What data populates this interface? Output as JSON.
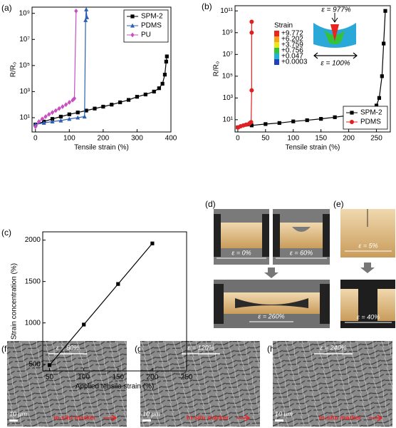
{
  "chart_data": [
    {
      "type": "line",
      "panel_label": "(a)",
      "log": true,
      "legend": "upper right",
      "xlabel": "Tensile strain (%)",
      "ylabel": "R/R₀",
      "xlim": [
        -10,
        400
      ],
      "xticks": [
        0,
        100,
        200,
        300,
        400
      ],
      "ylim": [
        0.8,
        3000000000
      ],
      "yticks": [
        {
          "value": 10,
          "label": "10¹"
        },
        {
          "value": 1000,
          "label": "10³"
        },
        {
          "value": 100000,
          "label": "10⁵"
        },
        {
          "value": 10000000,
          "label": "10⁷"
        },
        {
          "value": 1000000000,
          "label": "10⁹"
        }
      ],
      "series": [
        {
          "name": "SPM-2",
          "color": "#000000",
          "marker": "square",
          "x": [
            0,
            25,
            50,
            75,
            100,
            125,
            150,
            175,
            200,
            225,
            250,
            275,
            300,
            325,
            350,
            365,
            375,
            382,
            386,
            388
          ],
          "values": [
            3,
            5,
            8,
            12,
            18,
            25,
            35,
            50,
            70,
            100,
            150,
            230,
            400,
            600,
            1000,
            1800,
            4000,
            20000,
            200000,
            500000
          ]
        },
        {
          "name": "PDMS",
          "color": "#2d5fb5",
          "marker": "triangle",
          "x": [
            0,
            25,
            50,
            75,
            100,
            125,
            145,
            148,
            150,
            152
          ],
          "values": [
            3,
            4,
            5,
            6,
            8,
            10,
            12,
            300000000,
            2000000000,
            500000000
          ]
        },
        {
          "name": "PU",
          "color": "#c94fc0",
          "marker": "diamond",
          "x": [
            0,
            10,
            20,
            30,
            40,
            50,
            60,
            70,
            80,
            90,
            100,
            110,
            115,
            120
          ],
          "values": [
            2,
            5,
            8,
            12,
            18,
            25,
            35,
            50,
            70,
            100,
            150,
            220,
            300,
            1500000000
          ]
        }
      ]
    },
    {
      "type": "line",
      "panel_label": "(b)",
      "log": true,
      "legend": "lower right",
      "xlabel": "Tensile strain (%)",
      "ylabel": "R/R₀",
      "xlim": [
        -5,
        275
      ],
      "xticks": [
        0,
        50,
        100,
        150,
        200,
        250
      ],
      "ylim": [
        0.75,
        300000000000
      ],
      "yticks": [
        {
          "value": 10,
          "label": "10¹"
        },
        {
          "value": 1000,
          "label": "10³"
        },
        {
          "value": 100000,
          "label": "10⁵"
        },
        {
          "value": 10000000,
          "label": "10⁷"
        },
        {
          "value": 1000000000,
          "label": "10⁹"
        },
        {
          "value": 100000000000,
          "label": "10¹¹"
        }
      ],
      "series": [
        {
          "name": "SPM-2",
          "color": "#000000",
          "marker": "square",
          "x": [
            0,
            25,
            50,
            75,
            100,
            125,
            150,
            175,
            200,
            225,
            240,
            250,
            255,
            260,
            263,
            266
          ],
          "values": [
            2,
            3,
            4,
            5,
            7,
            9,
            12,
            17,
            25,
            45,
            80,
            200,
            1000,
            100000,
            100000000,
            100000000000
          ]
        },
        {
          "name": "PDMS",
          "color": "#e02020",
          "marker": "circle",
          "x": [
            0,
            5,
            10,
            15,
            20,
            22,
            24,
            25,
            25,
            25
          ],
          "values": [
            2,
            2.5,
            3,
            3.5,
            4,
            5,
            6,
            5000,
            1000000000,
            10000000000
          ]
        }
      ],
      "inset": {
        "title": "Strain",
        "levels": [
          "+9.772",
          "+6.202",
          "+3.759",
          "+0.756",
          "+0.047",
          "+0.0003"
        ],
        "colors": [
          "#e8251f",
          "#f7a21b",
          "#e9e61c",
          "#35c23a",
          "#1fb3d8",
          "#2142b8"
        ],
        "annotations": [
          "ε = 977%",
          "ε = 100%"
        ]
      }
    },
    {
      "type": "line",
      "panel_label": "(c)",
      "log": false,
      "xlabel": "Applied tensile strain (%)",
      "ylabel": "Strain concentration (%)",
      "xlim": [
        40,
        250
      ],
      "xticks": [
        50,
        100,
        150,
        200,
        250
      ],
      "ylim": [
        420,
        2100
      ],
      "yticks": [
        500,
        1000,
        1500,
        2000
      ],
      "color": "#000000",
      "marker": "square",
      "x": [
        50,
        100,
        150,
        200
      ],
      "values": [
        490,
        980,
        1470,
        1960
      ]
    }
  ],
  "photos": {
    "d": {
      "panel_label": "(d)",
      "labels": [
        "ε = 0%",
        "ε = 60%",
        "ε = 260%"
      ]
    },
    "e": {
      "panel_label": "(e)",
      "labels": [
        "ε = 5%",
        "ε = 40%"
      ]
    },
    "f": {
      "panel_label": "(f)",
      "strain": "ε = 60%",
      "scale": "10 μm",
      "marker": "in-situ marker"
    },
    "g": {
      "panel_label": "(g)",
      "strain": "ε = 120%",
      "scale": "10 μm",
      "marker": "in-situ marker"
    },
    "h": {
      "panel_label": "(h)",
      "strain": "ε = 240%",
      "scale": "10 μm",
      "marker": "in-situ marker"
    }
  }
}
